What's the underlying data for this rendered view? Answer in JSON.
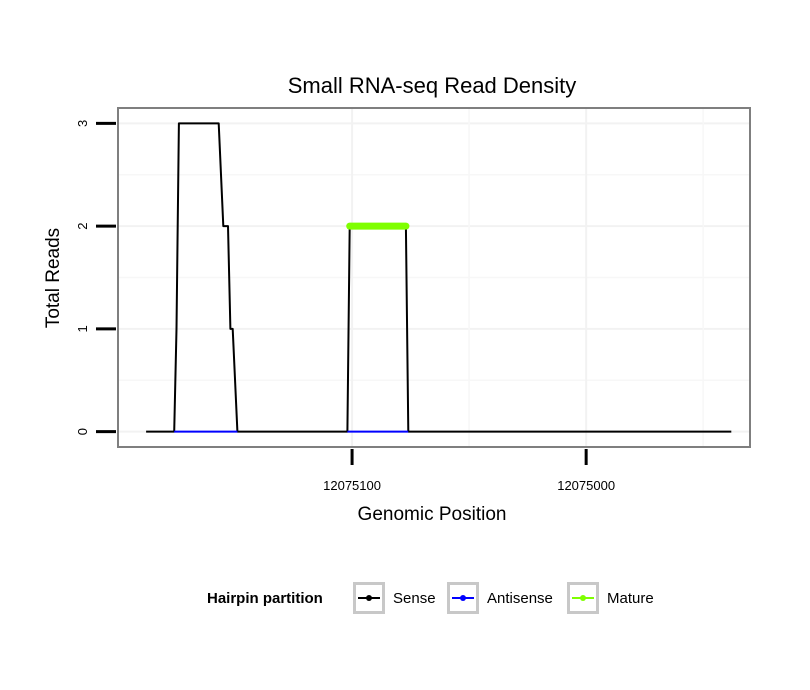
{
  "chart_data": {
    "type": "line",
    "title": "Small RNA-seq Read Density",
    "xlabel": "Genomic Position",
    "ylabel": "Total Reads",
    "x_reversed": true,
    "xlim": [
      12075200,
      12074930
    ],
    "ylim": [
      -0.15,
      3.15
    ],
    "x_ticks": [
      12075100,
      12075000
    ],
    "x_tick_labels": [
      "12075100",
      "12075000"
    ],
    "y_ticks": [
      0,
      1,
      2,
      3
    ],
    "y_tick_labels": [
      "0",
      "1",
      "2",
      "3"
    ],
    "grid": true,
    "legend": {
      "title": "Hairpin partition",
      "position": "bottom"
    },
    "series": [
      {
        "name": "Sense",
        "color": "#000000",
        "points": [
          [
            12075188,
            0
          ],
          [
            12075176,
            0
          ],
          [
            12075175,
            1
          ],
          [
            12075174,
            3
          ],
          [
            12075157,
            3
          ],
          [
            12075155,
            2
          ],
          [
            12075153,
            2
          ],
          [
            12075152,
            1
          ],
          [
            12075151,
            1
          ],
          [
            12075149,
            0
          ],
          [
            12075102,
            0
          ],
          [
            12075101,
            2
          ],
          [
            12075077,
            2
          ],
          [
            12075076,
            0
          ],
          [
            12074938,
            0
          ]
        ]
      },
      {
        "name": "Antisense",
        "color": "#0000ff",
        "points": [
          [
            12075176,
            0
          ],
          [
            12075149,
            0
          ],
          [
            12075102,
            0
          ],
          [
            12075076,
            0
          ]
        ]
      },
      {
        "name": "Mature",
        "color": "#7fff00",
        "points": [
          [
            12075101,
            2
          ],
          [
            12075077,
            2
          ]
        ]
      }
    ]
  }
}
